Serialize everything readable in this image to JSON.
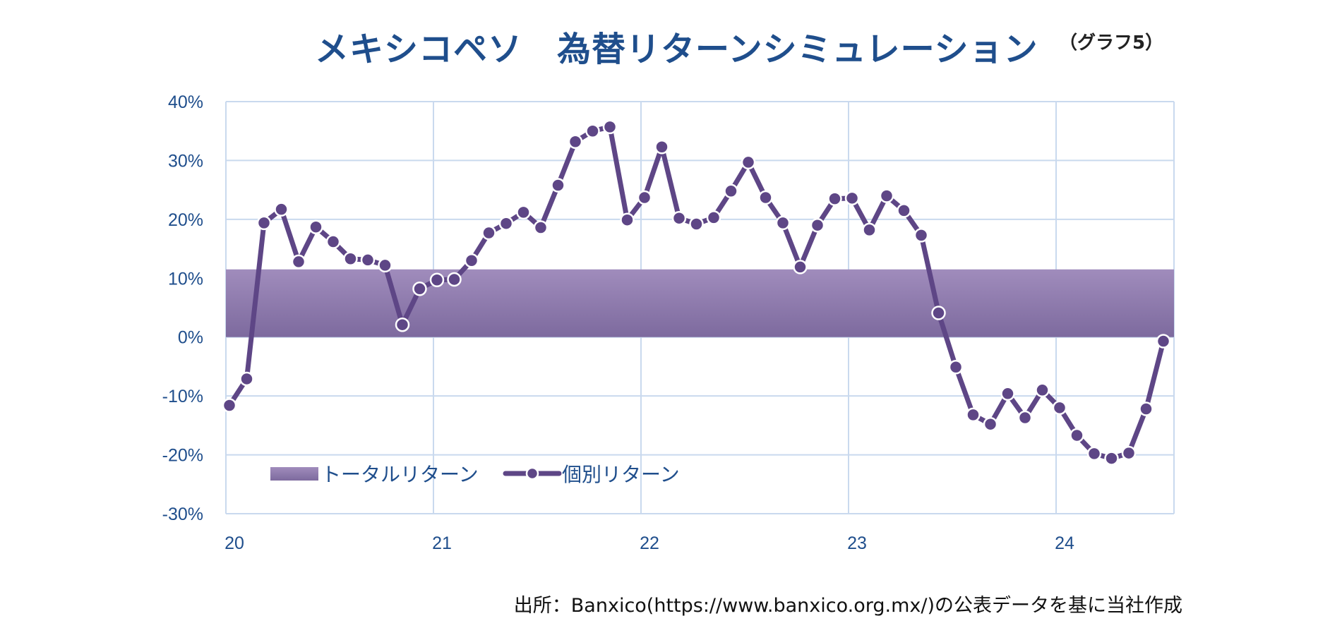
{
  "title": "メキシコペソ　為替リターンシミュレーション",
  "note": "（グラフ5）",
  "source": "出所：Banxico(https://www.banxico.org.mx/)の公表データを基に当社作成",
  "colors": {
    "title": "#1f4e8c",
    "axis_text": "#1f4e8c",
    "grid": "#c9d9ee",
    "band_top": "#a08cbc",
    "band_bottom": "#7d6a9e",
    "line": "#5e4686",
    "marker_fill": "#5e4686",
    "marker_stroke": "#ffffff"
  },
  "chart_data": {
    "type": "line",
    "x_tick_labels": [
      "20",
      "21",
      "22",
      "23",
      "24"
    ],
    "y_tick_labels": [
      "40%",
      "30%",
      "20%",
      "10%",
      "0%",
      "-10%",
      "-20%",
      "-30%"
    ],
    "ylim": [
      -30,
      40
    ],
    "grid": true,
    "legend": {
      "placement": "bottom-left",
      "items": [
        "トータルリターン",
        "個別リターン"
      ]
    },
    "total_return": {
      "name": "トータルリターン",
      "kind": "band",
      "value": 11.5
    },
    "series": [
      {
        "name": "個別リターン",
        "x_start": "2020-01",
        "frequency": "monthly",
        "values": [
          -11.6,
          -7.1,
          19.4,
          21.7,
          12.8,
          18.7,
          16.2,
          13.3,
          13.1,
          12.2,
          2.1,
          8.2,
          9.7,
          9.8,
          13.0,
          17.7,
          19.3,
          21.2,
          18.6,
          25.8,
          33.2,
          35.0,
          35.7,
          19.9,
          23.7,
          32.3,
          20.2,
          19.2,
          20.3,
          24.8,
          29.7,
          23.7,
          19.4,
          11.9,
          19.0,
          23.5,
          23.6,
          18.2,
          24.0,
          21.5,
          17.3,
          4.1,
          -5.1,
          -13.2,
          -14.8,
          -9.6,
          -13.7,
          -9.0,
          -12.0,
          -16.7,
          -19.8,
          -20.6,
          -19.7,
          -12.2,
          -0.7
        ]
      }
    ]
  }
}
